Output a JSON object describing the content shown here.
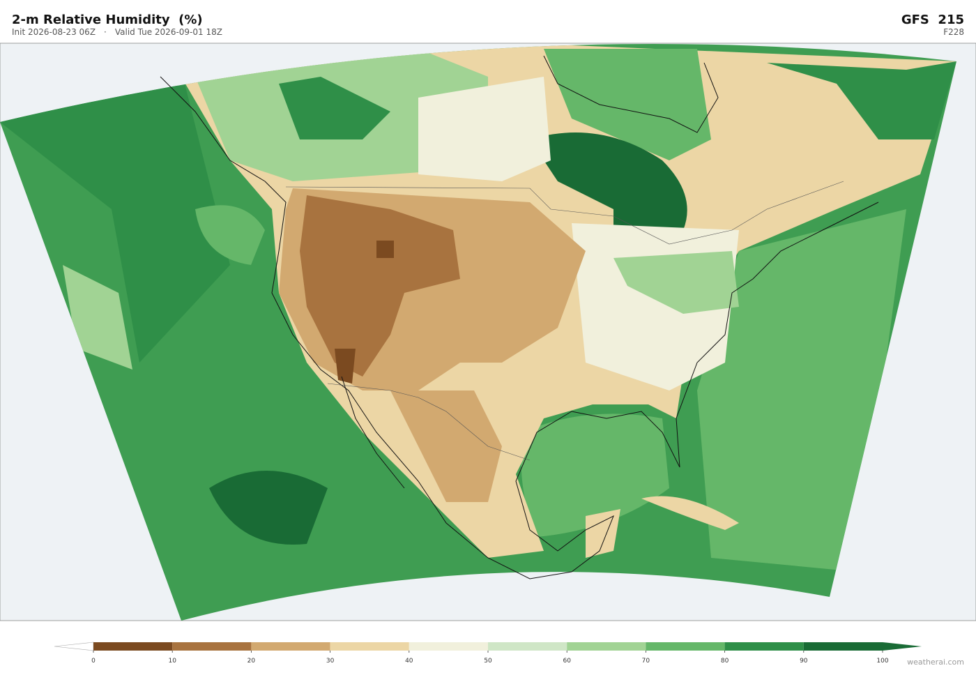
{
  "header": {
    "title": "2-m Relative Humidity  (%)",
    "init": "Init 2026-08-23 06Z",
    "separator": "·",
    "valid": "Valid Tue 2026-09-01 18Z",
    "model": "GFS  215",
    "forecast_hour": "F228"
  },
  "colorbar": {
    "ticks": [
      0,
      10,
      20,
      30,
      40,
      50,
      60,
      70,
      80,
      90,
      100
    ],
    "colors": [
      "#7b4a20",
      "#a8733f",
      "#d2a970",
      "#ecd6a5",
      "#f1f0dc",
      "#cfe6c6",
      "#a1d394",
      "#65b769",
      "#2f8f48",
      "#196b35"
    ],
    "under_color": "#ffffff",
    "over_color": "#196b35"
  },
  "watermark": "weatherai.com"
}
